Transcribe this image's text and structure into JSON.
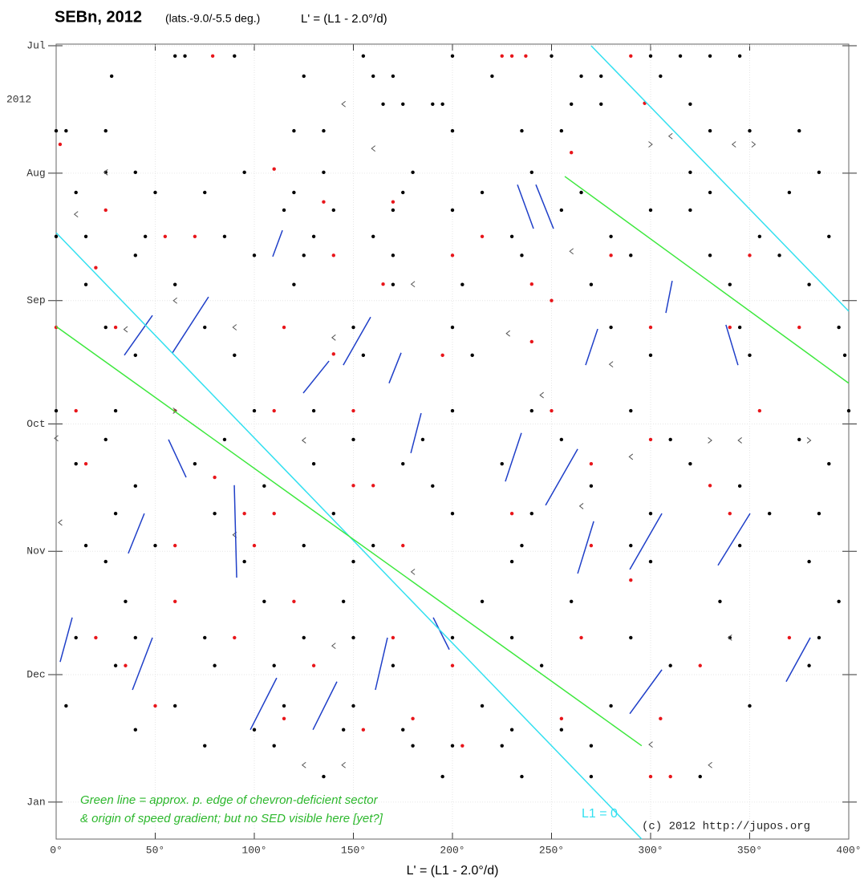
{
  "chart_data": {
    "type": "scatter",
    "title": "SEBn, 2012",
    "subtitle": "(lats.-9.0/-5.5 deg.)",
    "header_formula": "L' = (L1 - 2.0°/d)",
    "x_label": "L' = (L1 - 2.0°/d)",
    "year_label": "2012",
    "annotations": [
      {
        "text": "Green line = approx. p. edge of chevron-deficient sector",
        "color": "#2db82d"
      },
      {
        "text": "& origin of speed gradient; but no SED visible here [yet?]",
        "color": "#2db82d"
      },
      {
        "text": "L1 = 0",
        "color": "#33e0f0"
      },
      {
        "text": "(c) 2012 http://jupos.org",
        "color": "#222222"
      }
    ],
    "xlim": [
      0,
      400
    ],
    "xticks": [
      {
        "value": 0,
        "label": "0°"
      },
      {
        "value": 50,
        "label": "50°"
      },
      {
        "value": 100,
        "label": "100°"
      },
      {
        "value": 150,
        "label": "150°"
      },
      {
        "value": 200,
        "label": "200°"
      },
      {
        "value": 250,
        "label": "250°"
      },
      {
        "value": 300,
        "label": "300°"
      },
      {
        "value": 350,
        "label": "350°"
      },
      {
        "value": 400,
        "label": "400°"
      }
    ],
    "ylim": [
      0,
      193
    ],
    "y_inverted": true,
    "yticks": [
      {
        "value": 0,
        "label": "Jul"
      },
      {
        "value": 31,
        "label": "Aug"
      },
      {
        "value": 62,
        "label": "Sep"
      },
      {
        "value": 92,
        "label": "Oct"
      },
      {
        "value": 123,
        "label": "Nov"
      },
      {
        "value": 153,
        "label": "Dec"
      },
      {
        "value": 184,
        "label": "Jan"
      }
    ],
    "grid": true,
    "series": [
      {
        "marker": "dot",
        "color": "#000000",
        "x": [
          60,
          65,
          90,
          155,
          200,
          250,
          300,
          315,
          330,
          345,
          28,
          125,
          160,
          170,
          220,
          265,
          275,
          305,
          165,
          175,
          190,
          195,
          260,
          275,
          320,
          0,
          5,
          25,
          120,
          135,
          200,
          235,
          255,
          330,
          350,
          375,
          25,
          40,
          95,
          135,
          180,
          240,
          320,
          385,
          10,
          50,
          75,
          120,
          175,
          215,
          265,
          330,
          370,
          115,
          140,
          170,
          200,
          255,
          300,
          320,
          0,
          15,
          45,
          85,
          130,
          160,
          230,
          280,
          355,
          390,
          40,
          100,
          125,
          170,
          235,
          290,
          330,
          365,
          15,
          60,
          120,
          170,
          205,
          270,
          340,
          380,
          25,
          75,
          150,
          200,
          280,
          345,
          395,
          40,
          90,
          155,
          210,
          300,
          350,
          398,
          0,
          30,
          100,
          130,
          200,
          240,
          290,
          400,
          25,
          85,
          150,
          185,
          255,
          310,
          375,
          10,
          70,
          130,
          175,
          225,
          320,
          390,
          40,
          105,
          190,
          270,
          345,
          30,
          80,
          140,
          200,
          240,
          300,
          360,
          385,
          15,
          50,
          125,
          160,
          235,
          290,
          345,
          25,
          95,
          150,
          230,
          300,
          380,
          35,
          105,
          145,
          215,
          260,
          335,
          395,
          10,
          40,
          75,
          125,
          150,
          200,
          230,
          290,
          340,
          385,
          30,
          80,
          110,
          170,
          245,
          310,
          380,
          5,
          60,
          115,
          150,
          215,
          280,
          350,
          40,
          100,
          145,
          175,
          230,
          255,
          75,
          110,
          180,
          200,
          225,
          270,
          135,
          195,
          235,
          270,
          325
        ],
        "values": [
          2.5,
          2.5,
          2.5,
          2.5,
          2.5,
          2.5,
          2.5,
          2.5,
          2.5,
          2.5,
          7.4,
          7.4,
          7.4,
          7.4,
          7.4,
          7.4,
          7.4,
          7.4,
          14.2,
          14.2,
          14.2,
          14.2,
          14.2,
          14.2,
          14.2,
          20.7,
          20.7,
          20.7,
          20.7,
          20.7,
          20.7,
          20.7,
          20.7,
          20.7,
          20.7,
          20.7,
          30.8,
          30.8,
          30.8,
          30.8,
          30.8,
          30.8,
          30.8,
          30.8,
          35.7,
          35.7,
          35.7,
          35.7,
          35.7,
          35.7,
          35.7,
          35.7,
          35.7,
          40,
          40,
          40,
          40,
          40,
          40,
          40,
          46.4,
          46.4,
          46.4,
          46.4,
          46.4,
          46.4,
          46.4,
          46.4,
          46.4,
          46.4,
          51,
          51,
          51,
          51,
          51,
          51,
          51,
          51,
          58.1,
          58.1,
          58.1,
          58.1,
          58.1,
          58.1,
          58.1,
          58.1,
          68.5,
          68.5,
          68.5,
          68.5,
          68.5,
          68.5,
          68.5,
          75.3,
          75.3,
          75.3,
          75.3,
          75.3,
          75.3,
          75.3,
          88.8,
          88.8,
          88.8,
          88.8,
          88.8,
          88.8,
          88.8,
          88.8,
          95.8,
          95.8,
          95.8,
          95.8,
          95.8,
          95.8,
          95.8,
          101.7,
          101.7,
          101.7,
          101.7,
          101.7,
          101.7,
          101.7,
          107.1,
          107.1,
          107.1,
          107.1,
          107.1,
          113.8,
          113.8,
          113.8,
          113.8,
          113.8,
          113.8,
          113.8,
          113.8,
          121.6,
          121.6,
          121.6,
          121.6,
          121.6,
          121.6,
          121.6,
          125.5,
          125.5,
          125.5,
          125.5,
          125.5,
          125.5,
          135.2,
          135.2,
          135.2,
          135.2,
          135.2,
          135.2,
          135.2,
          144,
          144,
          144,
          144,
          144,
          144,
          144,
          144,
          144,
          144,
          150.8,
          150.8,
          150.8,
          150.8,
          150.8,
          150.8,
          150.8,
          160.6,
          160.6,
          160.6,
          160.6,
          160.6,
          160.6,
          160.6,
          166.4,
          166.4,
          166.4,
          166.4,
          166.4,
          166.4,
          170.3,
          170.3,
          170.3,
          170.3,
          170.3,
          170.3,
          177.8,
          177.8,
          177.8,
          177.8,
          177.8
        ]
      },
      {
        "marker": "dot",
        "color": "#e8161b",
        "x": [
          79,
          225,
          230,
          237,
          290,
          297,
          2,
          25,
          110,
          135,
          170,
          260,
          55,
          70,
          140,
          200,
          215,
          280,
          350,
          20,
          165,
          240,
          250,
          0,
          30,
          115,
          140,
          195,
          240,
          300,
          340,
          375,
          10,
          60,
          110,
          150,
          250,
          355,
          300,
          15,
          80,
          150,
          160,
          330,
          270,
          95,
          110,
          230,
          340,
          60,
          100,
          175,
          270,
          60,
          120,
          290,
          20,
          90,
          170,
          265,
          370,
          35,
          130,
          200,
          325,
          50,
          115,
          180,
          255,
          305,
          155,
          205,
          300,
          310
        ],
        "values": [
          2.5,
          2.5,
          2.5,
          2.5,
          2.5,
          14,
          24,
          40,
          30,
          38,
          38,
          26,
          46.4,
          46.4,
          51,
          51,
          46.4,
          51,
          51,
          54,
          58,
          58,
          62,
          68.5,
          68.5,
          68.5,
          75,
          75.3,
          72,
          68.5,
          68.5,
          68.5,
          88.8,
          88.8,
          88.8,
          88.8,
          88.8,
          88.8,
          95.8,
          101.7,
          105,
          107,
          107,
          107,
          101.7,
          113.8,
          113.8,
          113.8,
          113.8,
          121.6,
          121.6,
          121.6,
          121.6,
          135.2,
          135.2,
          130,
          144,
          144,
          144,
          144,
          144,
          150.8,
          150.8,
          150.8,
          150.8,
          160.6,
          163.7,
          163.7,
          163.7,
          163.7,
          166.4,
          170.3,
          177.8,
          177.8
        ]
      },
      {
        "marker": "chevron-left",
        "color": "#555555",
        "x": [
          145,
          160,
          25,
          310,
          342,
          10,
          260,
          180,
          60,
          35,
          90,
          228,
          140,
          280,
          245,
          0,
          125,
          345,
          290,
          2,
          90,
          180,
          265,
          140,
          340,
          300,
          125,
          145,
          330
        ],
        "values": [
          14.2,
          25,
          30.8,
          22,
          24,
          41,
          50,
          58,
          62,
          69,
          68.5,
          70,
          71,
          77.5,
          85,
          95.5,
          96,
          96,
          100,
          116,
          119,
          128,
          112,
          146,
          144,
          170,
          175,
          175,
          175
        ]
      },
      {
        "marker": "chevron-right",
        "color": "#555555",
        "x": [
          300,
          352,
          60,
          330,
          380
        ],
        "values": [
          24,
          24,
          88.8,
          96,
          96
        ]
      },
      {
        "marker": "line",
        "color": "#1f3fc8",
        "x": [
          109.3,
          114.2,
          null,
          34.4,
          48.6,
          null,
          58.7,
          76.9,
          null,
          124.7,
          137.7,
          null,
          144.9,
          158.7,
          null,
          168,
          174.1,
          null,
          179,
          184.2,
          null,
          56.7,
          65.6,
          null,
          226.7,
          234.8,
          null,
          247,
          263.2,
          null,
          232.8,
          240.9,
          null,
          242.1,
          251,
          null,
          267.2,
          273.3,
          null,
          307.7,
          310.9,
          null,
          338,
          344.1,
          null,
          263.2,
          271.3,
          null,
          289.5,
          305.7,
          null,
          334,
          350.2,
          null,
          2,
          8.1,
          null,
          91.1,
          89.9,
          null,
          38.5,
          48.6,
          null,
          98,
          111.3,
          null,
          129.6,
          141.7,
          null,
          161.1,
          167.2,
          null,
          289.5,
          305.7,
          null,
          368.4,
          380.6,
          null,
          190.3,
          198.4,
          null,
          36.4,
          44.5
        ],
        "values": [
          51.3,
          44.9,
          null,
          75.3,
          65.6,
          null,
          74.7,
          61.1,
          null,
          84.5,
          76.7,
          null,
          77.7,
          66,
          null,
          82.1,
          74.7,
          null,
          99.1,
          89.4,
          null,
          95.8,
          105,
          null,
          106,
          94.2,
          null,
          111.8,
          98.1,
          null,
          33.8,
          44.5,
          null,
          33.8,
          44.5,
          null,
          77.7,
          68.9,
          null,
          65,
          57.2,
          null,
          67.9,
          77.7,
          null,
          128.4,
          115.7,
          null,
          127.4,
          113.8,
          null,
          126.4,
          113.8,
          null,
          149.9,
          139.1,
          null,
          129.4,
          106.9,
          null,
          156.7,
          144,
          null,
          166.4,
          153.8,
          null,
          166.4,
          154.7,
          null,
          156.7,
          144,
          null,
          162.5,
          151.8,
          null,
          154.7,
          144,
          null,
          139.1,
          146.9,
          null,
          123.5,
          113.8
        ]
      },
      {
        "marker": "line",
        "color": "#33e0f0",
        "x": [
          270,
          400,
          null,
          0,
          295.5
        ],
        "values": [
          0,
          64.6,
          null,
          45.5,
          193
        ]
      },
      {
        "marker": "line",
        "color": "#3ee83e",
        "x": [
          256.7,
          400,
          null,
          0,
          295.5
        ],
        "values": [
          31.8,
          82.1,
          null,
          68.3,
          170.3
        ]
      }
    ]
  }
}
